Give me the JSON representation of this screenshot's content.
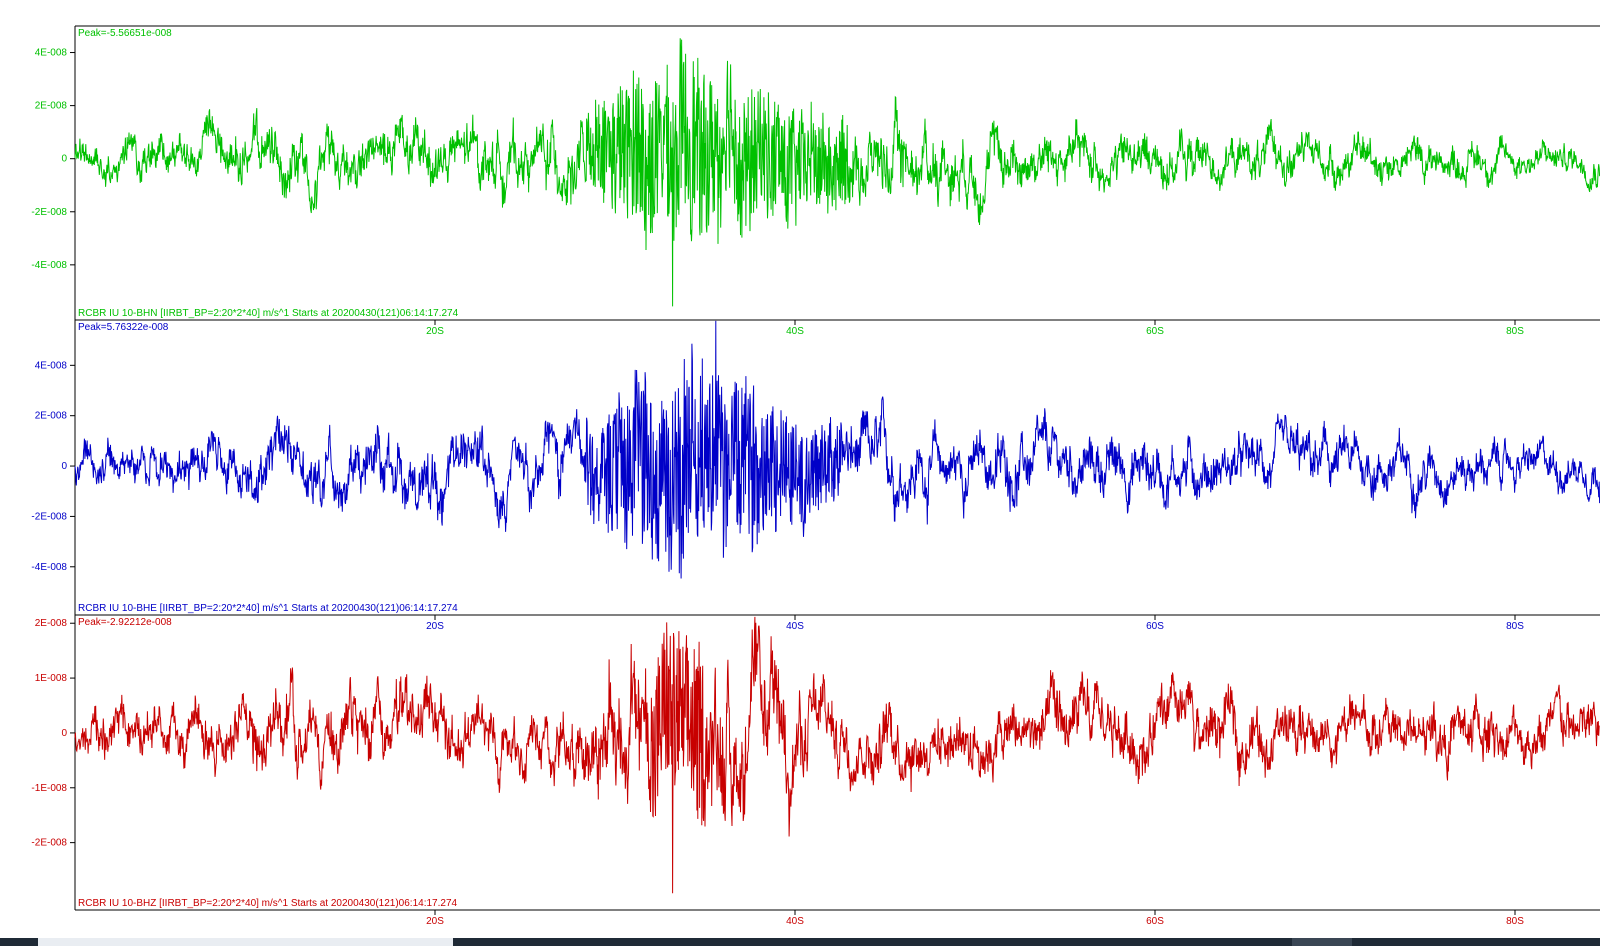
{
  "chart_data": [
    {
      "type": "line",
      "title": "",
      "peak_label": "Peak=-5.56651e-008",
      "trace_label": "RCBR IU 10-BHN  [IIRBT_BP=2:20*2*40] m/s^1 Starts at 20200430(121)06:14:17.274",
      "channel": "BHN",
      "color": "#00c000",
      "ylim": [
        -5.4e-08,
        5e-08
      ],
      "yticks": [
        4e-08,
        2e-08,
        0,
        -2e-08,
        -4e-08
      ],
      "ytick_labels": [
        "4E-008",
        "2E-008",
        "0",
        "-2E-008",
        "-4E-008"
      ],
      "xlim": [
        0,
        85
      ],
      "xticks": [
        20,
        40,
        60,
        80
      ],
      "xtick_labels": [
        "20S",
        "40S",
        "60S",
        "80S"
      ],
      "peak_value": -5.56651e-08,
      "series": [
        {
          "x": [
            0,
            2,
            4,
            6,
            8,
            10,
            12,
            14,
            16,
            18,
            20,
            22,
            24,
            26,
            28,
            29,
            30,
            31,
            32,
            33,
            34,
            35,
            36,
            37,
            38,
            39,
            40,
            41,
            42,
            43,
            44,
            46,
            48,
            50,
            52,
            54,
            56,
            58,
            60,
            62,
            64,
            66,
            68,
            70,
            72,
            74,
            76,
            78,
            80,
            82,
            85
          ],
          "amplitude": [
            8e-09,
            9e-09,
            1e-08,
            1e-08,
            1.2e-08,
            1.4e-08,
            1.5e-08,
            1.4e-08,
            1.3e-08,
            1.4e-08,
            1.5e-08,
            1.5e-08,
            1.4e-08,
            1.5e-08,
            1.8e-08,
            2.4e-08,
            3e-08,
            3.8e-08,
            4e-08,
            4.2e-08,
            4.3e-08,
            4e-08,
            3.8e-08,
            3.6e-08,
            3.3e-08,
            3e-08,
            2.8e-08,
            2.5e-08,
            2.2e-08,
            2e-08,
            1.9e-08,
            1.8e-08,
            1.7e-08,
            1.5e-08,
            1.4e-08,
            1.4e-08,
            1.3e-08,
            1.2e-08,
            1.3e-08,
            1.2e-08,
            1.1e-08,
            1e-08,
            1.1e-08,
            1e-08,
            1e-08,
            1e-08,
            9e-09,
            9e-09,
            8e-09,
            8e-09,
            8e-09
          ]
        }
      ]
    },
    {
      "type": "line",
      "title": "",
      "peak_label": "Peak=5.76322e-008",
      "trace_label": "RCBR IU 10-BHE  [IIRBT_BP=2:20*2*40] m/s^1 Starts at 20200430(121)06:14:17.274",
      "channel": "BHE",
      "color": "#0000c8",
      "ylim": [
        -5.2e-08,
        5.8e-08
      ],
      "yticks": [
        4e-08,
        2e-08,
        0,
        -2e-08,
        -4e-08
      ],
      "ytick_labels": [
        "4E-008",
        "2E-008",
        "0",
        "-2E-008",
        "-4E-008"
      ],
      "xlim": [
        0,
        85
      ],
      "xticks": [
        20,
        40,
        60,
        80
      ],
      "xtick_labels": [
        "20S",
        "40S",
        "60S",
        "80S"
      ],
      "peak_value": 5.76322e-08,
      "series": [
        {
          "x": [
            0,
            2,
            4,
            6,
            8,
            10,
            12,
            14,
            16,
            18,
            20,
            22,
            24,
            26,
            28,
            29,
            30,
            31,
            32,
            33,
            34,
            35,
            36,
            37,
            38,
            39,
            40,
            41,
            42,
            43,
            44,
            46,
            48,
            50,
            52,
            54,
            56,
            58,
            60,
            62,
            64,
            66,
            68,
            70,
            72,
            74,
            76,
            78,
            80,
            82,
            85
          ],
          "amplitude": [
            9e-09,
            1e-08,
            1.1e-08,
            1.2e-08,
            1.3e-08,
            1.5e-08,
            1.6e-08,
            1.5e-08,
            1.6e-08,
            1.7e-08,
            1.9e-08,
            1.6e-08,
            1.5e-08,
            1.6e-08,
            1.9e-08,
            2.6e-08,
            3.4e-08,
            4.2e-08,
            4.6e-08,
            4.8e-08,
            4.9e-08,
            4.6e-08,
            4.3e-08,
            4.1e-08,
            3.8e-08,
            3.4e-08,
            3e-08,
            2.5e-08,
            2.2e-08,
            1.9e-08,
            1.8e-08,
            1.7e-08,
            1.6e-08,
            1.5e-08,
            1.6e-08,
            1.5e-08,
            1.4e-08,
            1.5e-08,
            1.7e-08,
            1.4e-08,
            1.3e-08,
            1.3e-08,
            1.4e-08,
            1.5e-08,
            1.3e-08,
            1.3e-08,
            1.2e-08,
            1.1e-08,
            1e-08,
            1e-08,
            1e-08
          ]
        }
      ]
    },
    {
      "type": "line",
      "title": "",
      "peak_label": "Peak=-2.92212e-008",
      "trace_label": "RCBR IU 10-BHZ  [IIRBT_BP=2:20*2*40] m/s^1 Starts at 20200430(121)06:14:17.274",
      "channel": "BHZ",
      "color": "#c80000",
      "ylim": [
        -2.9e-08,
        2.15e-08
      ],
      "yticks": [
        2e-08,
        1e-08,
        0,
        -1e-08,
        -2e-08
      ],
      "ytick_labels": [
        "2E-008",
        "1E-008",
        "0",
        "-1E-008",
        "-2E-008"
      ],
      "xlim": [
        0,
        85
      ],
      "xticks": [
        20,
        40,
        60,
        80
      ],
      "xtick_labels": [
        "20S",
        "40S",
        "60S",
        "80S"
      ],
      "peak_value": -2.92212e-08,
      "series": [
        {
          "x": [
            0,
            2,
            4,
            6,
            8,
            10,
            12,
            14,
            16,
            18,
            20,
            22,
            24,
            26,
            28,
            29,
            30,
            31,
            32,
            33,
            34,
            35,
            36,
            37,
            38,
            39,
            40,
            41,
            42,
            43,
            44,
            46,
            48,
            50,
            52,
            54,
            56,
            58,
            60,
            62,
            64,
            66,
            68,
            70,
            72,
            74,
            76,
            78,
            80,
            82,
            85
          ],
          "amplitude": [
            5e-09,
            6e-09,
            7e-09,
            7e-09,
            7e-09,
            8e-09,
            9e-09,
            8e-09,
            8e-09,
            8e-09,
            9e-09,
            7e-09,
            7e-09,
            7e-09,
            9e-09,
            1.2e-08,
            1.5e-08,
            1.8e-08,
            2e-08,
            2.1e-08,
            2.1e-08,
            2e-08,
            1.9e-08,
            1.7e-08,
            1.5e-08,
            1.3e-08,
            1.2e-08,
            1e-08,
            9e-09,
            8e-09,
            8e-09,
            8e-09,
            8e-09,
            7e-09,
            7e-09,
            8e-09,
            8e-09,
            8e-09,
            8e-09,
            8e-09,
            8e-09,
            7e-09,
            7e-09,
            7e-09,
            7e-09,
            7e-09,
            7e-09,
            7e-09,
            6e-09,
            6e-09,
            6e-09
          ]
        }
      ]
    }
  ]
}
